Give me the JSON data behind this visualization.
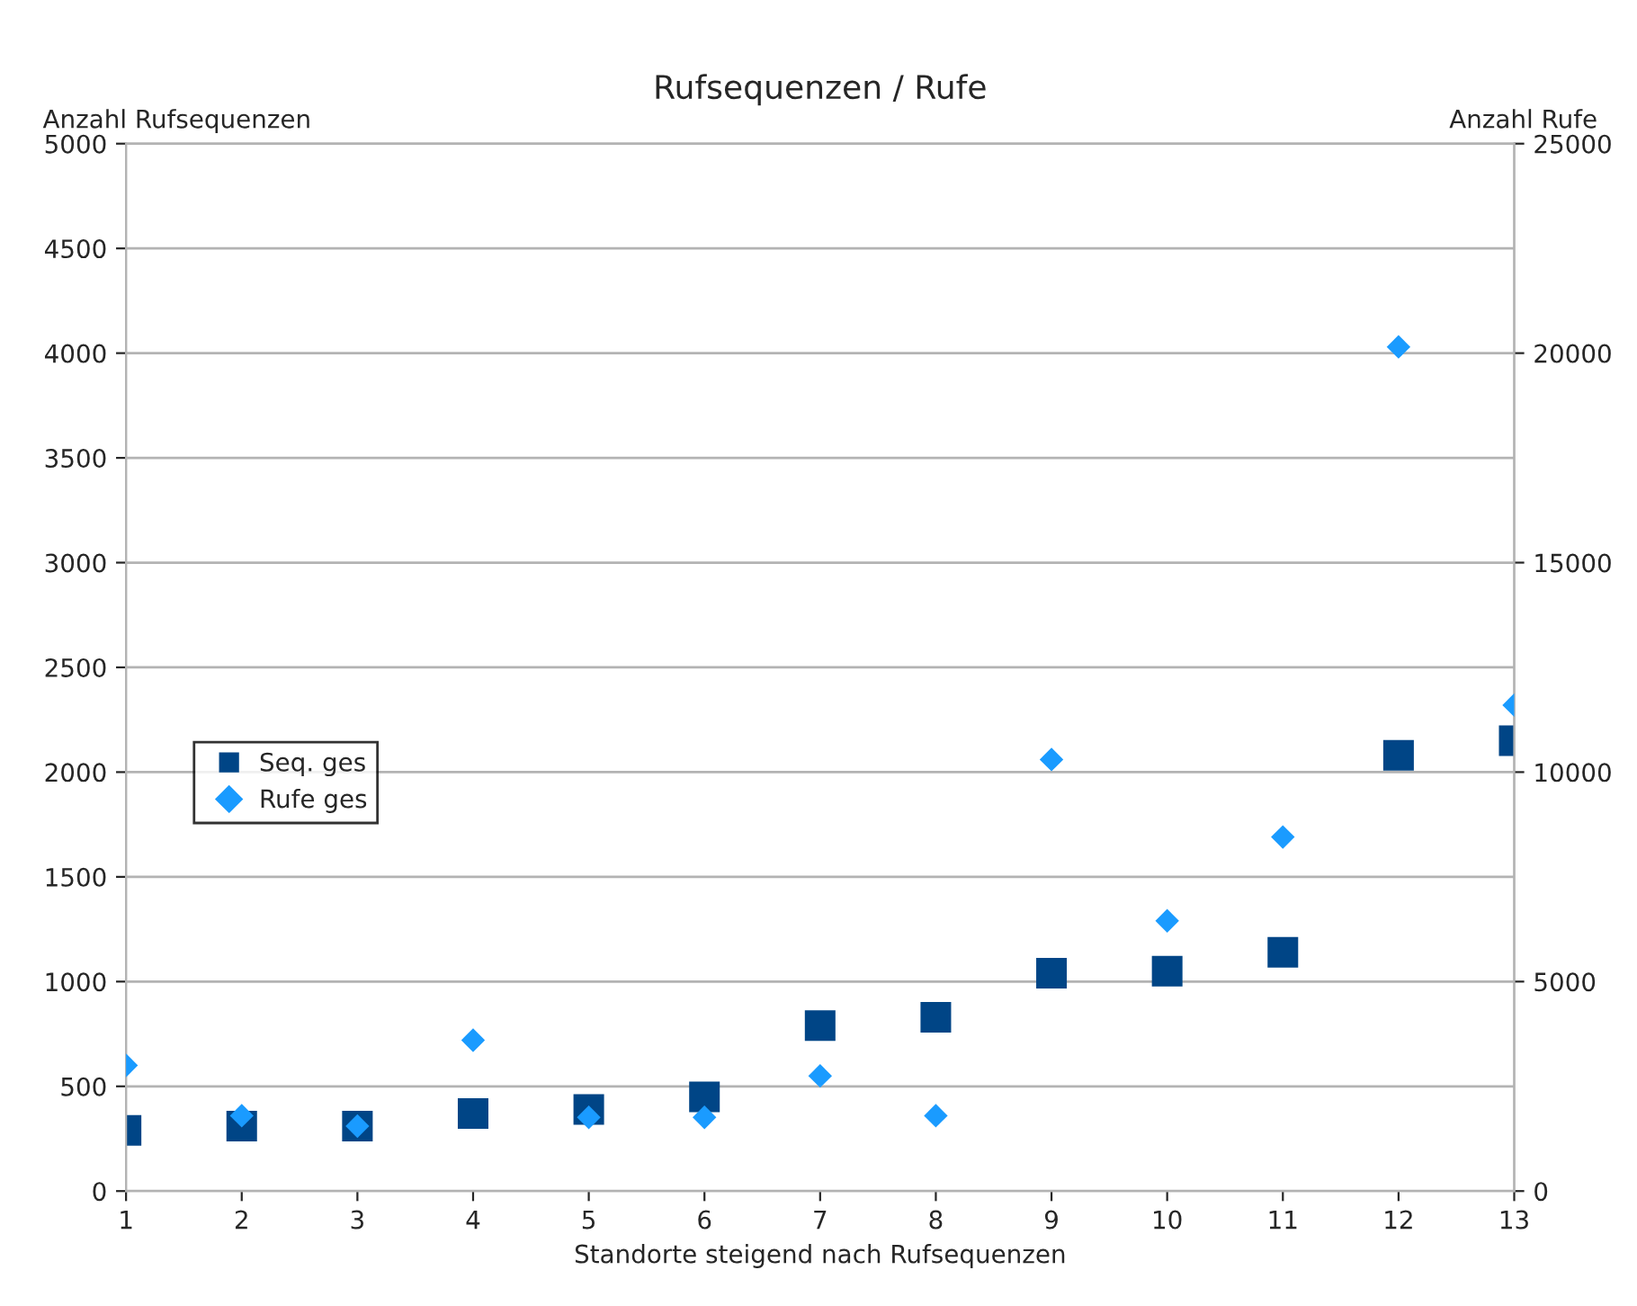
{
  "chart_data": {
    "type": "scatter",
    "title": "Rufsequenzen / Rufe",
    "xlabel": "Standorte steigend nach Rufsequenzen",
    "ylabel": "Anzahl Rufsequenzen",
    "y2label": "Anzahl Rufe",
    "x": [
      1,
      2,
      3,
      4,
      5,
      6,
      7,
      8,
      9,
      10,
      11,
      12,
      13
    ],
    "xlim": [
      1,
      13
    ],
    "xticks": [
      1,
      2,
      3,
      4,
      5,
      6,
      7,
      8,
      9,
      10,
      11,
      12,
      13
    ],
    "ylim": [
      0,
      5000
    ],
    "yticks": [
      0,
      500,
      1000,
      1500,
      2000,
      2500,
      3000,
      3500,
      4000,
      4500,
      5000
    ],
    "y2lim": [
      0,
      25000
    ],
    "y2ticks": [
      0,
      5000,
      10000,
      15000,
      20000,
      25000
    ],
    "grid": "y",
    "legend": "left",
    "series": [
      {
        "name": "Seq. ges",
        "color": "#004586",
        "marker": "square",
        "values": [
          290,
          310,
          310,
          370,
          390,
          450,
          790,
          830,
          1040,
          1050,
          1140,
          2080,
          2150
        ]
      },
      {
        "name": "Rufe ges",
        "color": "#1a9bff",
        "marker": "diamond",
        "axis": "y2",
        "values": [
          3000,
          1800,
          1550,
          3600,
          1760,
          1760,
          2750,
          1800,
          10300,
          6450,
          8450,
          20150,
          11600
        ]
      }
    ]
  }
}
